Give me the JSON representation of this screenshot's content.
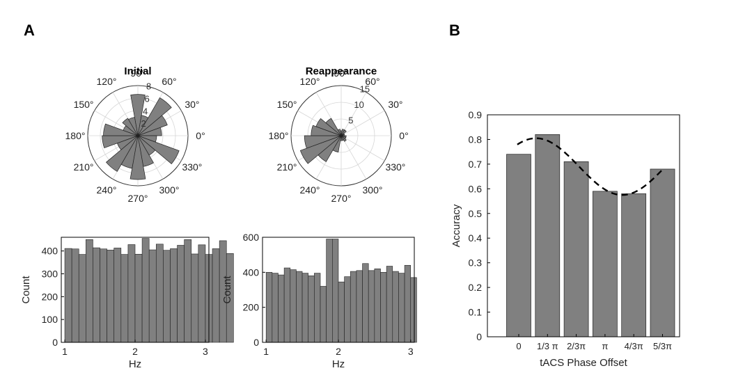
{
  "panels": {
    "a": "A",
    "b": "B"
  },
  "chart_data": [
    {
      "type": "rose",
      "title": "Initial",
      "angle_labels": [
        "90°",
        "60°",
        "30°",
        "0°",
        "330°",
        "300°",
        "270°",
        "240°",
        "210°",
        "180°",
        "150°",
        "120°"
      ],
      "radial_ticks": [
        "2",
        "4",
        "6",
        "8"
      ],
      "rmax": 8,
      "bin_width_deg": 20,
      "bins": [
        {
          "angle": 90,
          "value": 6.6
        },
        {
          "angle": 70,
          "value": 3.3
        },
        {
          "angle": 50,
          "value": 7.0
        },
        {
          "angle": 30,
          "value": 5.0
        },
        {
          "angle": 10,
          "value": 3.8
        },
        {
          "angle": 350,
          "value": 3.0
        },
        {
          "angle": 330,
          "value": 7.0
        },
        {
          "angle": 310,
          "value": 3.6
        },
        {
          "angle": 290,
          "value": 5.0
        },
        {
          "angle": 270,
          "value": 7.0
        },
        {
          "angle": 250,
          "value": 5.3
        },
        {
          "angle": 230,
          "value": 6.6
        },
        {
          "angle": 210,
          "value": 3.5
        },
        {
          "angle": 190,
          "value": 5.7
        },
        {
          "angle": 170,
          "value": 5.5
        },
        {
          "angle": 150,
          "value": 2.5
        },
        {
          "angle": 130,
          "value": 3.2
        },
        {
          "angle": 110,
          "value": 3.0
        }
      ]
    },
    {
      "type": "rose",
      "title": "Reappearance",
      "angle_labels": [
        "90°",
        "60°",
        "30°",
        "0°",
        "330°",
        "300°",
        "270°",
        "240°",
        "210°",
        "180°",
        "150°",
        "120°"
      ],
      "radial_ticks": [
        "5",
        "10",
        "15"
      ],
      "rmax": 15,
      "bin_width_deg": 20,
      "bins": [
        {
          "angle": 90,
          "value": 1.5
        },
        {
          "angle": 70,
          "value": 2.0
        },
        {
          "angle": 50,
          "value": 2.0
        },
        {
          "angle": 30,
          "value": 1.0
        },
        {
          "angle": 10,
          "value": 1.0
        },
        {
          "angle": 350,
          "value": 1.5
        },
        {
          "angle": 330,
          "value": 1.5
        },
        {
          "angle": 310,
          "value": 2.0
        },
        {
          "angle": 290,
          "value": 1.5
        },
        {
          "angle": 270,
          "value": 1.5
        },
        {
          "angle": 250,
          "value": 5.0
        },
        {
          "angle": 230,
          "value": 9.0
        },
        {
          "angle": 210,
          "value": 13.0
        },
        {
          "angle": 190,
          "value": 11.0
        },
        {
          "angle": 170,
          "value": 9.0
        },
        {
          "angle": 150,
          "value": 8.0
        },
        {
          "angle": 130,
          "value": 6.0
        },
        {
          "angle": 110,
          "value": 2.0
        }
      ]
    },
    {
      "type": "bar",
      "subtype": "histogram",
      "xlabel": "Hz",
      "ylabel": "Count",
      "xlim": [
        0.95,
        3.05
      ],
      "ylim": [
        0,
        460
      ],
      "xticks": [
        "1",
        "2",
        "3"
      ],
      "yticks": [
        "0",
        "100",
        "200",
        "300",
        "400"
      ],
      "bin_start": 1.0,
      "bin_width": 0.1,
      "values": [
        411,
        409,
        385,
        450,
        414,
        409,
        404,
        413,
        385,
        428,
        386,
        455,
        405,
        430,
        403,
        410,
        425,
        450,
        387,
        427,
        385,
        410,
        445,
        389
      ]
    },
    {
      "type": "bar",
      "subtype": "histogram",
      "xlabel": "Hz",
      "ylabel": "Count",
      "xlim": [
        0.95,
        3.05
      ],
      "ylim": [
        0,
        600
      ],
      "xticks": [
        "1",
        "2",
        "3"
      ],
      "yticks": [
        "0",
        "200",
        "400",
        "600"
      ],
      "bin_start": 1.0,
      "bin_width": 0.0833,
      "values": [
        400,
        395,
        385,
        425,
        415,
        405,
        395,
        380,
        395,
        320,
        590,
        590,
        345,
        375,
        405,
        410,
        450,
        410,
        420,
        400,
        435,
        405,
        395,
        440,
        370
      ]
    },
    {
      "type": "bar",
      "xlabel": "tACS Phase Offset",
      "ylabel": "Accuracy",
      "categories": [
        "0",
        "1/3 π",
        "2/3π",
        "π",
        "4/3π",
        "5/3π"
      ],
      "values": [
        0.74,
        0.82,
        0.71,
        0.59,
        0.58,
        0.68
      ],
      "ylim": [
        0,
        0.9
      ],
      "yticks": [
        "0",
        "0.1",
        "0.2",
        "0.3",
        "0.4",
        "0.5",
        "0.6",
        "0.7",
        "0.8",
        "0.9"
      ],
      "fit_curve": {
        "style": "dashed",
        "mean": 0.69,
        "amplitude": 0.115,
        "peak_category_index": 0.6
      }
    }
  ]
}
